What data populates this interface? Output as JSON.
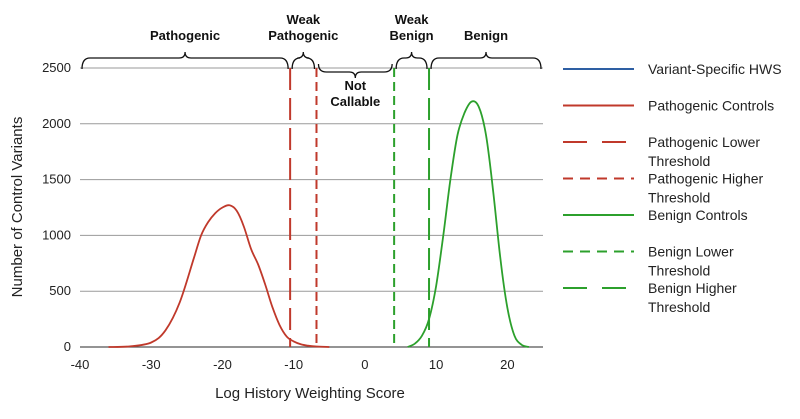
{
  "chart_data": {
    "type": "line",
    "xlabel": "Log History Weighting Score",
    "ylabel": "Number of Control Variants",
    "xlim": [
      -40,
      25
    ],
    "ylim": [
      0,
      2500
    ],
    "x_ticks": [
      -40,
      -30,
      -20,
      -10,
      0,
      10,
      20
    ],
    "y_ticks": [
      0,
      500,
      1000,
      1500,
      2000,
      2500
    ],
    "grid": "horizontal",
    "legend_position": "right",
    "series": [
      {
        "name": "Pathogenic Controls",
        "color": "#c0392b",
        "style": "solid",
        "points": [
          [
            -36,
            0
          ],
          [
            -33,
            5
          ],
          [
            -30,
            40
          ],
          [
            -28,
            150
          ],
          [
            -26,
            400
          ],
          [
            -24,
            800
          ],
          [
            -23,
            1000
          ],
          [
            -22,
            1120
          ],
          [
            -21,
            1200
          ],
          [
            -20,
            1250
          ],
          [
            -19,
            1270
          ],
          [
            -18,
            1220
          ],
          [
            -17,
            1080
          ],
          [
            -16,
            880
          ],
          [
            -15,
            740
          ],
          [
            -14,
            560
          ],
          [
            -13,
            360
          ],
          [
            -12,
            200
          ],
          [
            -11,
            95
          ],
          [
            -10,
            50
          ],
          [
            -9,
            25
          ],
          [
            -8,
            12
          ],
          [
            -7,
            5
          ],
          [
            -5,
            0
          ]
        ]
      },
      {
        "name": "Benign Controls",
        "color": "#2ca02c",
        "style": "solid",
        "points": [
          [
            6,
            0
          ],
          [
            7,
            30
          ],
          [
            8,
            100
          ],
          [
            9,
            250
          ],
          [
            10,
            550
          ],
          [
            11,
            1000
          ],
          [
            12,
            1500
          ],
          [
            13,
            1900
          ],
          [
            14,
            2100
          ],
          [
            15,
            2200
          ],
          [
            16,
            2150
          ],
          [
            17,
            1900
          ],
          [
            18,
            1400
          ],
          [
            19,
            800
          ],
          [
            20,
            350
          ],
          [
            21,
            100
          ],
          [
            22,
            20
          ],
          [
            23,
            0
          ]
        ]
      }
    ],
    "thresholds": [
      {
        "name": "Pathogenic Lower Threshold",
        "x": -10.5,
        "color": "#c0392b",
        "style": "long-dash"
      },
      {
        "name": "Pathogenic Higher Threshold",
        "x": -6.8,
        "color": "#c0392b",
        "style": "short-dash"
      },
      {
        "name": "Benign Lower Threshold",
        "x": 4.1,
        "color": "#2ca02c",
        "style": "short-dash"
      },
      {
        "name": "Benign Higher Threshold",
        "x": 9.0,
        "color": "#2ca02c",
        "style": "long-dash"
      }
    ],
    "regions": [
      {
        "label": [
          "Pathogenic"
        ],
        "from": -40,
        "to": -10.5
      },
      {
        "label": [
          "Weak",
          "Pathogenic"
        ],
        "from": -10.5,
        "to": -6.8
      },
      {
        "label": [
          "Not",
          "Callable"
        ],
        "from": -6.8,
        "to": 4.1
      },
      {
        "label": [
          "Weak",
          "Benign"
        ],
        "from": 4.1,
        "to": 9.0
      },
      {
        "label": [
          "Benign"
        ],
        "from": 9.0,
        "to": 25
      }
    ],
    "legend": [
      {
        "label": [
          "Variant-Specific HWS"
        ],
        "color": "#2e5fa3",
        "style": "solid"
      },
      {
        "label": [
          "Pathogenic Controls"
        ],
        "color": "#c0392b",
        "style": "solid"
      },
      {
        "label": [
          "Pathogenic Lower",
          "Threshold"
        ],
        "color": "#c0392b",
        "style": "long-dash"
      },
      {
        "label": [
          "Pathogenic Higher",
          "Threshold"
        ],
        "color": "#c0392b",
        "style": "short-dash"
      },
      {
        "label": [
          "Benign Controls"
        ],
        "color": "#2ca02c",
        "style": "solid"
      },
      {
        "label": [
          "Benign Lower",
          "Threshold"
        ],
        "color": "#2ca02c",
        "style": "short-dash"
      },
      {
        "label": [
          "Benign Higher",
          "Threshold"
        ],
        "color": "#2ca02c",
        "style": "long-dash"
      }
    ]
  }
}
